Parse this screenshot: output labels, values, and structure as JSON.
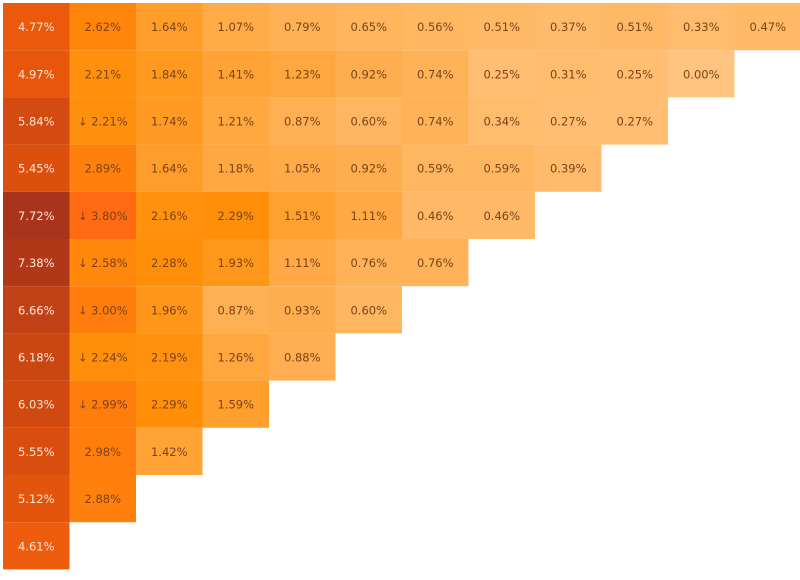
{
  "chart_data": {
    "type": "heatmap",
    "color_stops": [
      {
        "value": 0,
        "color": "#ffc47f"
      },
      {
        "value": 2.3,
        "color": "#ff8e08"
      },
      {
        "value": 3.8,
        "color": "#ff6a12"
      },
      {
        "value": 5,
        "color": "#e6550b"
      },
      {
        "value": 7.72,
        "color": "#a8341b"
      }
    ],
    "rows": [
      {
        "values": [
          4.77,
          2.62,
          1.64,
          1.07,
          0.79,
          0.65,
          0.56,
          0.51,
          0.37,
          0.51,
          0.33,
          0.47
        ],
        "value_labels": [
          "4.77%",
          "2.62%",
          "1.64%",
          "1.07%",
          "0.79%",
          "0.65%",
          "0.56%",
          "0.51%",
          "0.37%",
          "0.51%",
          "0.33%",
          "0.47%"
        ]
      },
      {
        "values": [
          4.97,
          2.21,
          1.84,
          1.41,
          1.23,
          0.92,
          0.74,
          0.25,
          0.31,
          0.25,
          0.0
        ],
        "value_labels": [
          "4.97%",
          "2.21%",
          "1.84%",
          "1.41%",
          "1.23%",
          "0.92%",
          "0.74%",
          "0.25%",
          "0.31%",
          "0.25%",
          "0.00%"
        ]
      },
      {
        "values": [
          5.84,
          2.21,
          1.74,
          1.21,
          0.87,
          0.6,
          0.74,
          0.34,
          0.27,
          0.27
        ],
        "value_labels": [
          "5.84%",
          "↓ 2.21%",
          "1.74%",
          "1.21%",
          "0.87%",
          "0.60%",
          "0.74%",
          "0.34%",
          "0.27%",
          "0.27%"
        ]
      },
      {
        "values": [
          5.45,
          2.89,
          1.64,
          1.18,
          1.05,
          0.92,
          0.59,
          0.59,
          0.39
        ],
        "value_labels": [
          "5.45%",
          "2.89%",
          "1.64%",
          "1.18%",
          "1.05%",
          "0.92%",
          "0.59%",
          "0.59%",
          "0.39%"
        ]
      },
      {
        "values": [
          7.72,
          3.8,
          2.16,
          2.29,
          1.51,
          1.11,
          0.46,
          0.46
        ],
        "value_labels": [
          "7.72%",
          "↓ 3.80%",
          "2.16%",
          "2.29%",
          "1.51%",
          "1.11%",
          "0.46%",
          "0.46%"
        ]
      },
      {
        "values": [
          7.38,
          2.58,
          2.28,
          1.93,
          1.11,
          0.76,
          0.76
        ],
        "value_labels": [
          "7.38%",
          "↓ 2.58%",
          "2.28%",
          "1.93%",
          "1.11%",
          "0.76%",
          "0.76%"
        ]
      },
      {
        "values": [
          6.66,
          3.0,
          1.96,
          0.87,
          0.93,
          0.6
        ],
        "value_labels": [
          "6.66%",
          "↓ 3.00%",
          "1.96%",
          "0.87%",
          "0.93%",
          "0.60%"
        ]
      },
      {
        "values": [
          6.18,
          2.24,
          2.19,
          1.26,
          0.88
        ],
        "value_labels": [
          "6.18%",
          "↓ 2.24%",
          "2.19%",
          "1.26%",
          "0.88%"
        ]
      },
      {
        "values": [
          6.03,
          2.99,
          2.29,
          1.59
        ],
        "value_labels": [
          "6.03%",
          "↓ 2.99%",
          "2.29%",
          "1.59%"
        ]
      },
      {
        "values": [
          5.55,
          2.98,
          1.42
        ],
        "value_labels": [
          "5.55%",
          "2.98%",
          "1.42%"
        ]
      },
      {
        "values": [
          5.12,
          2.88
        ],
        "value_labels": [
          "5.12%",
          "2.88%"
        ]
      },
      {
        "values": [
          4.61
        ],
        "value_labels": [
          "4.61%"
        ]
      }
    ]
  }
}
